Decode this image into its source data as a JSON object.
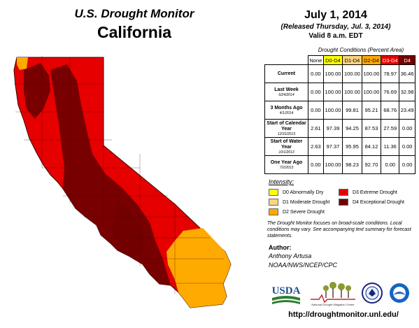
{
  "header": {
    "title": "U.S. Drought Monitor",
    "state": "California",
    "date": "July 1, 2014",
    "released": "(Released Thursday, Jul. 3, 2014)",
    "valid": "Valid 8 a.m. EDT"
  },
  "table": {
    "caption": "Drought Conditions (Percent Area)",
    "columns": [
      "None",
      "D0-D4",
      "D1-D4",
      "D2-D4",
      "D3-D4",
      "D4"
    ],
    "column_colors": [
      "#ffffff",
      "#ffff00",
      "#fcd37f",
      "#ffaa00",
      "#e60000",
      "#730000"
    ],
    "rows": [
      {
        "label": "Current",
        "sub": "",
        "values": [
          "0.00",
          "100.00",
          "100.00",
          "100.00",
          "78.97",
          "36.46"
        ]
      },
      {
        "label": "Last Week",
        "sub": "6/24/2014",
        "values": [
          "0.00",
          "100.00",
          "100.00",
          "100.00",
          "76.69",
          "32.98"
        ]
      },
      {
        "label": "3 Months Ago",
        "sub": "4/1/2014",
        "values": [
          "0.00",
          "100.00",
          "99.81",
          "95.21",
          "68.76",
          "23.49"
        ]
      },
      {
        "label": "Start of Calendar Year",
        "sub": "12/31/2013",
        "values": [
          "2.61",
          "97.39",
          "94.25",
          "87.53",
          "27.59",
          "0.00"
        ]
      },
      {
        "label": "Start of Water Year",
        "sub": "10/1/2013",
        "values": [
          "2.63",
          "97.37",
          "95.95",
          "84.12",
          "11.36",
          "0.00"
        ]
      },
      {
        "label": "One Year Ago",
        "sub": "7/2/2013",
        "values": [
          "0.00",
          "100.00",
          "98.23",
          "92.70",
          "0.00",
          "0.00"
        ]
      }
    ]
  },
  "legend": {
    "title": "Intensity:",
    "items": [
      {
        "label": "D0 Abnormally Dry",
        "color": "#ffff00"
      },
      {
        "label": "D1 Moderate Drought",
        "color": "#fcd37f"
      },
      {
        "label": "D2 Severe Drought",
        "color": "#ffaa00"
      },
      {
        "label": "D3 Extreme Drought",
        "color": "#e60000"
      },
      {
        "label": "D4 Exceptional Drought",
        "color": "#730000"
      }
    ]
  },
  "note": "The Drought Monitor focuses on broad-scale conditions. Local conditions may vary. See accompanying text summary for forecast statements.",
  "author": {
    "label": "Author:",
    "name": "Anthony Artusa",
    "org": "NOAA/NWS/NCEP/CPC"
  },
  "logos": {
    "usda": "USDA",
    "ndmc": "National Drought Mitigation Center"
  },
  "url": "http://droughtmonitor.unl.edu/"
}
